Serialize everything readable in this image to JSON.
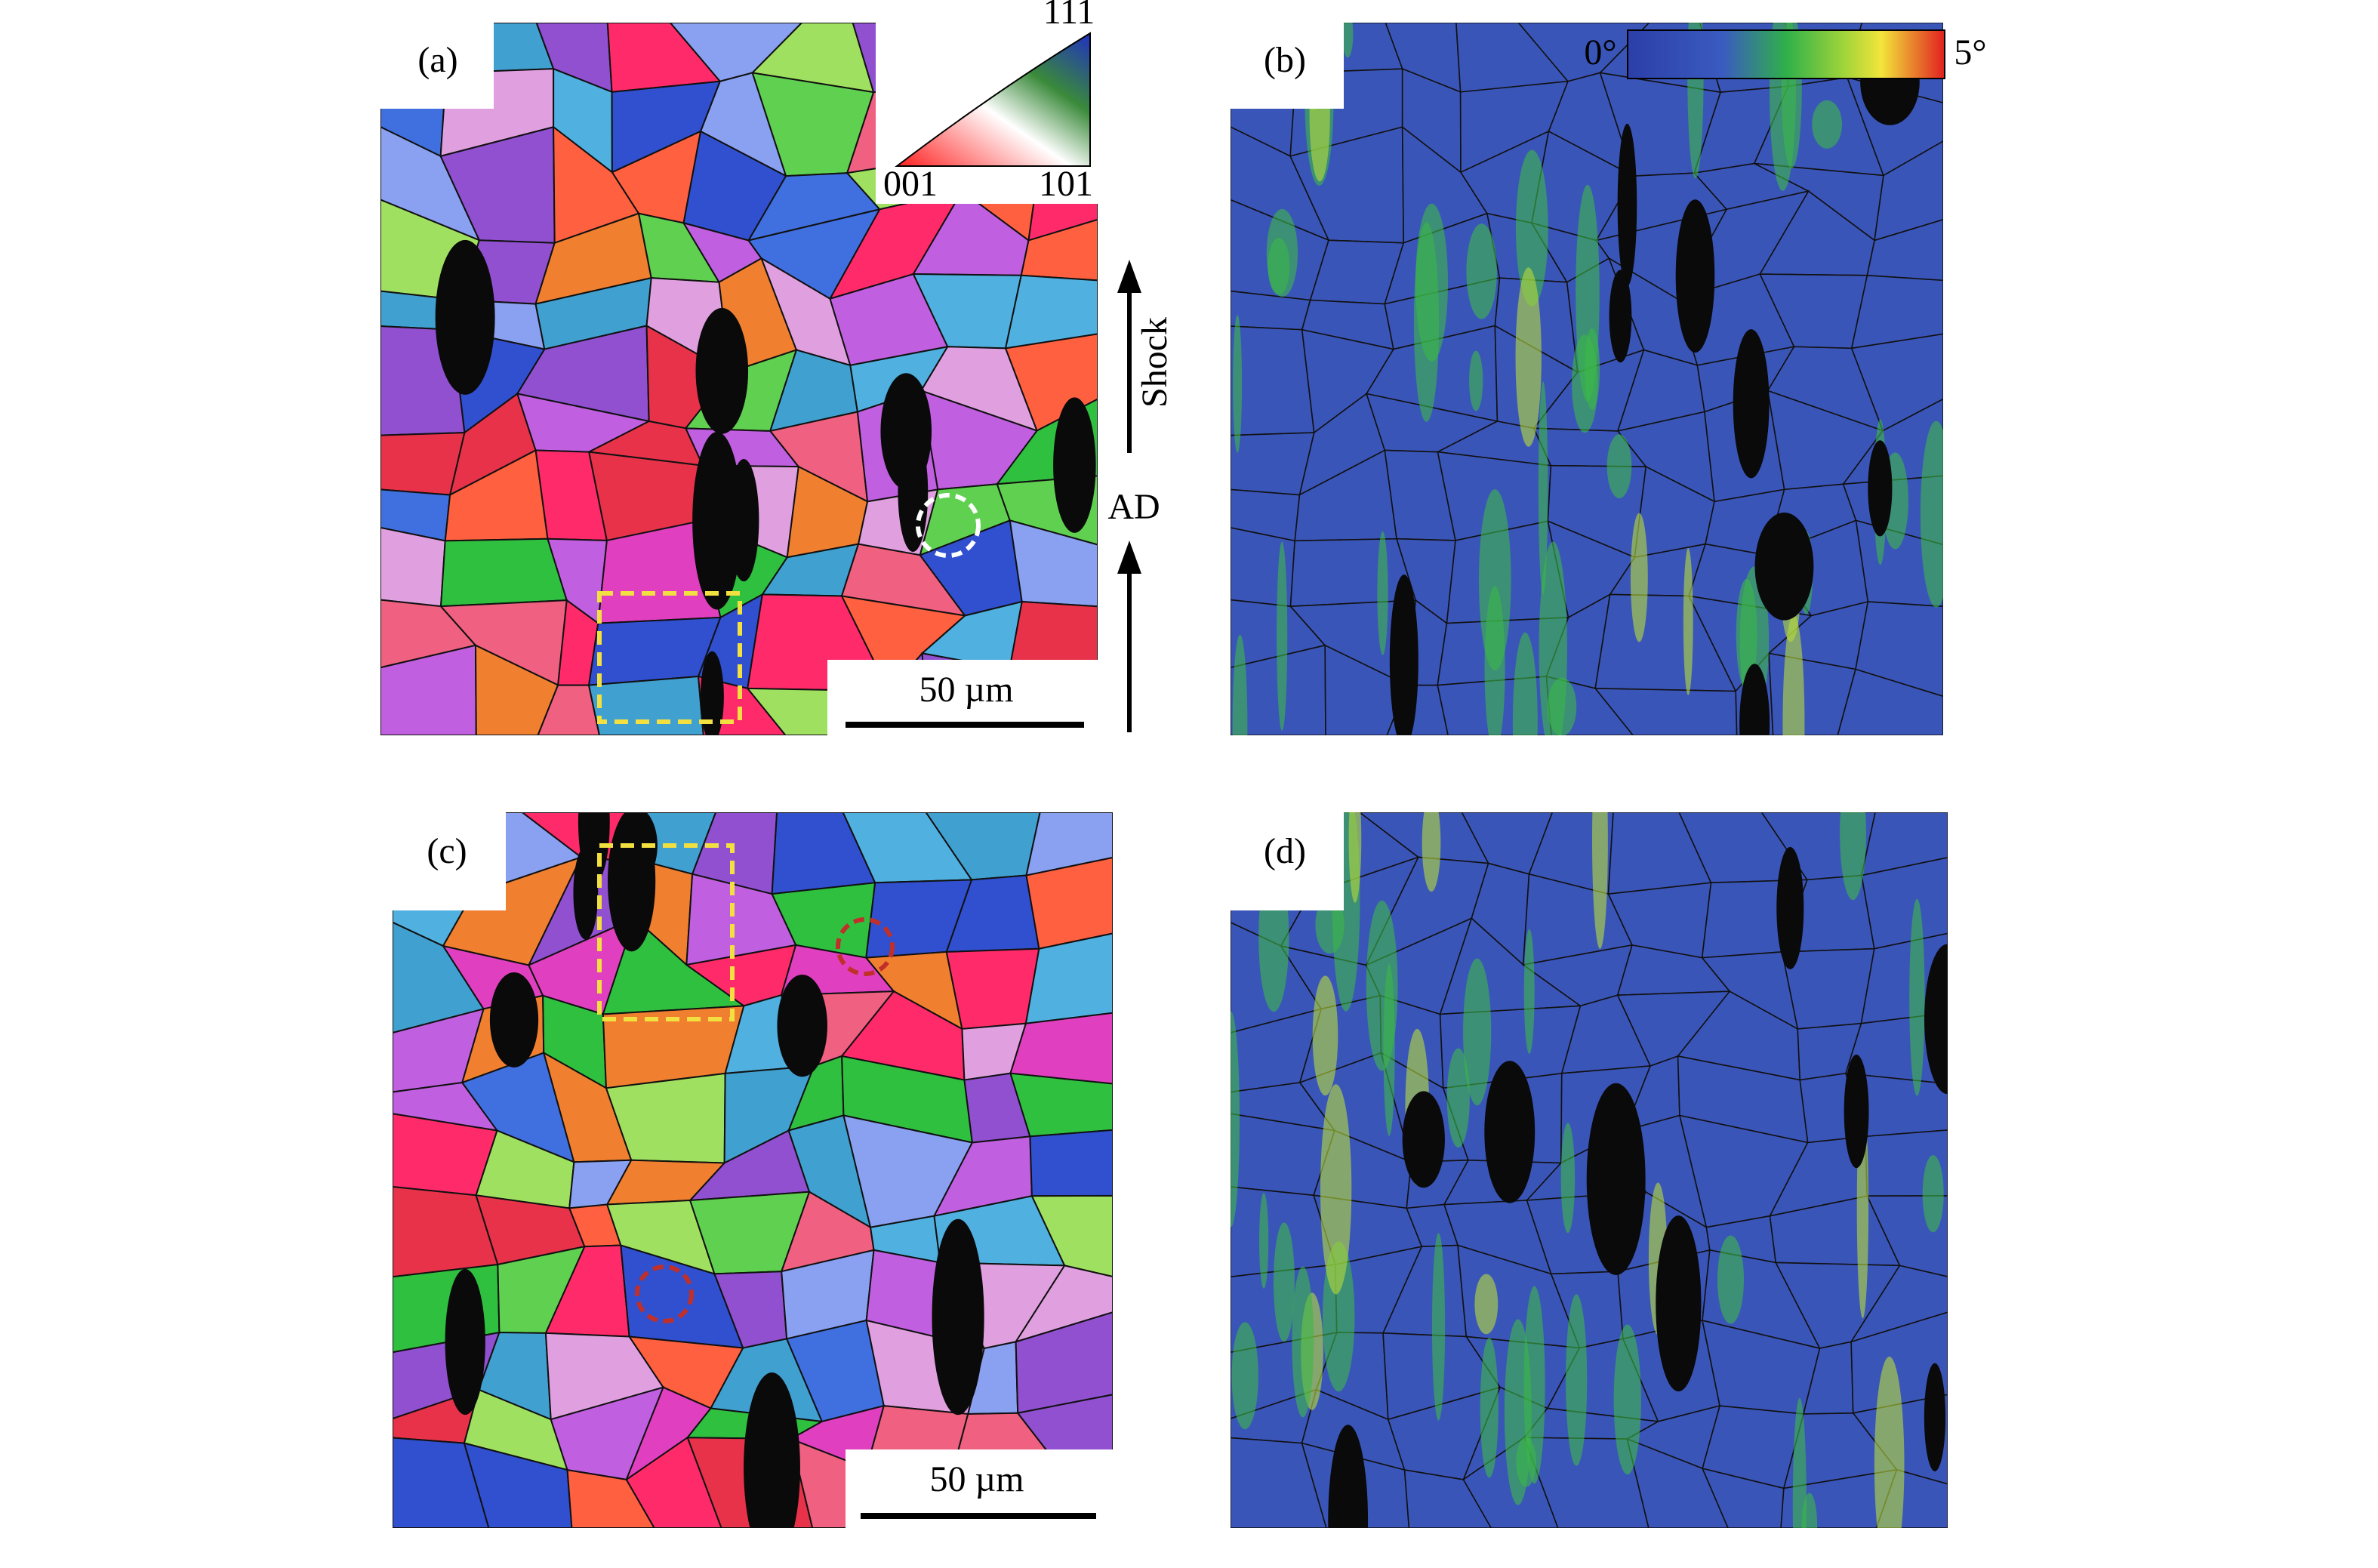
{
  "panels": [
    {
      "label": "(a)"
    },
    {
      "label": "(b)"
    },
    {
      "label": "(c)"
    },
    {
      "label": "(d)"
    }
  ],
  "ipf_legend": {
    "corners": [
      "111",
      "001",
      "101"
    ]
  },
  "colorbar": {
    "min_label": "0°",
    "max_label": "5°"
  },
  "scale_bars": [
    "50 µm",
    "50 µm"
  ],
  "arrows": {
    "upper": "Shock",
    "lower": "AD"
  }
}
